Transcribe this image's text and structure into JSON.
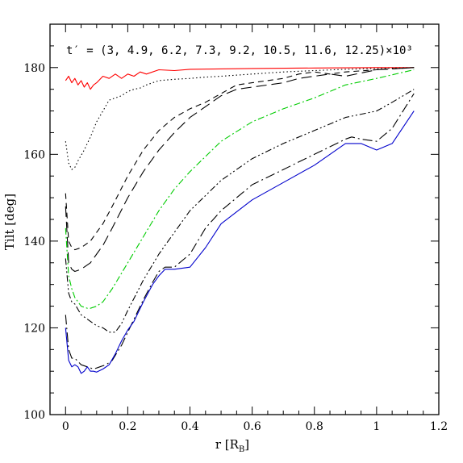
{
  "chart_data": {
    "type": "line",
    "title": "",
    "annotation": "t′ = (3, 4.9, 6.2, 7.3, 9.2, 10.5, 11.6, 12.25)×10³",
    "xlabel": "r [R",
    "xlabel_sub": "B",
    "xlabel_end": "]",
    "ylabel": "Tilt [deg]",
    "xlim": [
      -0.05,
      1.2
    ],
    "ylim": [
      100,
      190
    ],
    "xticks": [
      0,
      0.2,
      0.4,
      0.6,
      0.8,
      1,
      1.2
    ],
    "xtick_labels": [
      "0",
      "0.2",
      "0.4",
      "0.6",
      "0.8",
      "1",
      "1.2"
    ],
    "yticks": [
      100,
      120,
      140,
      160,
      180
    ],
    "ytick_labels": [
      "100",
      "120",
      "140",
      "160",
      "180"
    ],
    "grid": false,
    "series": [
      {
        "color": "#ff0000",
        "dash": "solid",
        "x": [
          0.0,
          0.01,
          0.02,
          0.03,
          0.04,
          0.05,
          0.06,
          0.07,
          0.08,
          0.09,
          0.1,
          0.12,
          0.14,
          0.16,
          0.18,
          0.2,
          0.22,
          0.24,
          0.26,
          0.3,
          0.35,
          0.4,
          0.5,
          0.6,
          0.8,
          1.0,
          1.12
        ],
        "y": [
          177,
          178,
          176.5,
          177.5,
          176,
          177,
          175.5,
          176.5,
          175,
          176,
          176.5,
          178,
          177.5,
          178.5,
          177.5,
          178.5,
          178,
          179,
          178.5,
          179.5,
          179.3,
          179.6,
          179.7,
          179.8,
          179.9,
          180,
          180
        ]
      },
      {
        "color": "#000000",
        "dash": "dotted",
        "x": [
          0.0,
          0.01,
          0.02,
          0.03,
          0.04,
          0.06,
          0.08,
          0.1,
          0.12,
          0.14,
          0.16,
          0.18,
          0.2,
          0.22,
          0.24,
          0.26,
          0.3,
          0.35,
          0.4,
          0.45,
          0.5,
          0.6,
          0.7,
          0.8,
          0.9,
          1.0,
          1.12
        ],
        "y": [
          163,
          158,
          156.5,
          157,
          158.5,
          161,
          164,
          167.5,
          170,
          172.5,
          173,
          173.5,
          174.5,
          175,
          175.3,
          176,
          177,
          177.3,
          177.5,
          177.8,
          178,
          178.5,
          179,
          179.3,
          179.6,
          179.8,
          180
        ]
      },
      {
        "color": "#000000",
        "dash": "short",
        "x": [
          0.0,
          0.01,
          0.02,
          0.03,
          0.05,
          0.08,
          0.1,
          0.12,
          0.15,
          0.2,
          0.25,
          0.3,
          0.35,
          0.4,
          0.45,
          0.5,
          0.55,
          0.6,
          0.7,
          0.75,
          0.8,
          0.85,
          0.9,
          1.0,
          1.12
        ],
        "y": [
          151,
          140,
          138.5,
          138,
          138.5,
          140,
          142,
          144,
          148,
          155,
          161,
          165.5,
          168.5,
          170.5,
          172,
          174,
          176,
          176.5,
          177.5,
          178.5,
          179,
          178.5,
          179,
          179.5,
          180
        ]
      },
      {
        "color": "#000000",
        "dash": "long",
        "x": [
          0.0,
          0.01,
          0.02,
          0.03,
          0.05,
          0.08,
          0.1,
          0.12,
          0.15,
          0.2,
          0.25,
          0.3,
          0.35,
          0.4,
          0.45,
          0.5,
          0.55,
          0.6,
          0.7,
          0.75,
          0.8,
          0.85,
          0.9,
          1.0,
          1.12
        ],
        "y": [
          148,
          135,
          133.5,
          133,
          133.5,
          135,
          137,
          139,
          143,
          150,
          156,
          161,
          165,
          168.5,
          171,
          173.5,
          175,
          175.5,
          176.5,
          177.5,
          178,
          178.5,
          178,
          179.5,
          180
        ]
      },
      {
        "color": "#00cc00",
        "dash": "dashdot",
        "x": [
          0.0,
          0.01,
          0.02,
          0.03,
          0.05,
          0.07,
          0.08,
          0.1,
          0.12,
          0.15,
          0.2,
          0.25,
          0.3,
          0.35,
          0.4,
          0.5,
          0.6,
          0.7,
          0.8,
          0.9,
          1.0,
          1.12
        ],
        "y": [
          143,
          132,
          129,
          127,
          125,
          124.5,
          124.5,
          125,
          126,
          129,
          135,
          141,
          147,
          152,
          156,
          163,
          167.5,
          170.5,
          173,
          176,
          177.5,
          179.5
        ]
      },
      {
        "color": "#000000",
        "dash": "dashdotdot",
        "x": [
          0.0,
          0.01,
          0.02,
          0.03,
          0.05,
          0.08,
          0.1,
          0.12,
          0.14,
          0.16,
          0.18,
          0.2,
          0.25,
          0.3,
          0.35,
          0.4,
          0.5,
          0.6,
          0.7,
          0.8,
          0.9,
          1.0,
          1.05,
          1.12
        ],
        "y": [
          136,
          128,
          126,
          125.5,
          123,
          121.5,
          120.5,
          120,
          119,
          119,
          121,
          124,
          131,
          137,
          142,
          147,
          154,
          159,
          162.5,
          165.5,
          168.5,
          170,
          172,
          175
        ]
      },
      {
        "color": "#000000",
        "dash": "longdashdot",
        "x": [
          0.0,
          0.01,
          0.02,
          0.03,
          0.05,
          0.07,
          0.09,
          0.11,
          0.13,
          0.15,
          0.18,
          0.2,
          0.25,
          0.28,
          0.3,
          0.32,
          0.35,
          0.4,
          0.45,
          0.5,
          0.6,
          0.7,
          0.8,
          0.9,
          0.92,
          0.95,
          1.0,
          1.05,
          1.12
        ],
        "y": [
          123,
          115,
          113,
          113,
          111.5,
          111,
          110.5,
          111,
          111.5,
          112.5,
          116,
          119,
          126.5,
          130.5,
          133,
          134,
          134,
          137,
          143,
          147,
          153,
          156.5,
          160,
          163.5,
          164,
          163.5,
          163,
          166,
          174
        ]
      },
      {
        "color": "#0000cc",
        "dash": "solid",
        "x": [
          0.0,
          0.01,
          0.02,
          0.03,
          0.04,
          0.05,
          0.06,
          0.07,
          0.08,
          0.09,
          0.1,
          0.12,
          0.14,
          0.16,
          0.18,
          0.2,
          0.22,
          0.25,
          0.28,
          0.3,
          0.32,
          0.35,
          0.4,
          0.45,
          0.5,
          0.6,
          0.7,
          0.8,
          0.9,
          0.95,
          1.0,
          1.05,
          1.12
        ],
        "y": [
          120,
          112.5,
          111,
          111.5,
          111,
          109.5,
          110,
          111,
          110,
          110,
          109.8,
          110.5,
          111.5,
          114,
          117,
          119.5,
          121.5,
          126,
          130,
          132,
          133.5,
          133.5,
          134,
          138.5,
          144,
          149.5,
          153.5,
          157.5,
          162.5,
          162.5,
          161,
          162.5,
          170
        ]
      }
    ]
  }
}
